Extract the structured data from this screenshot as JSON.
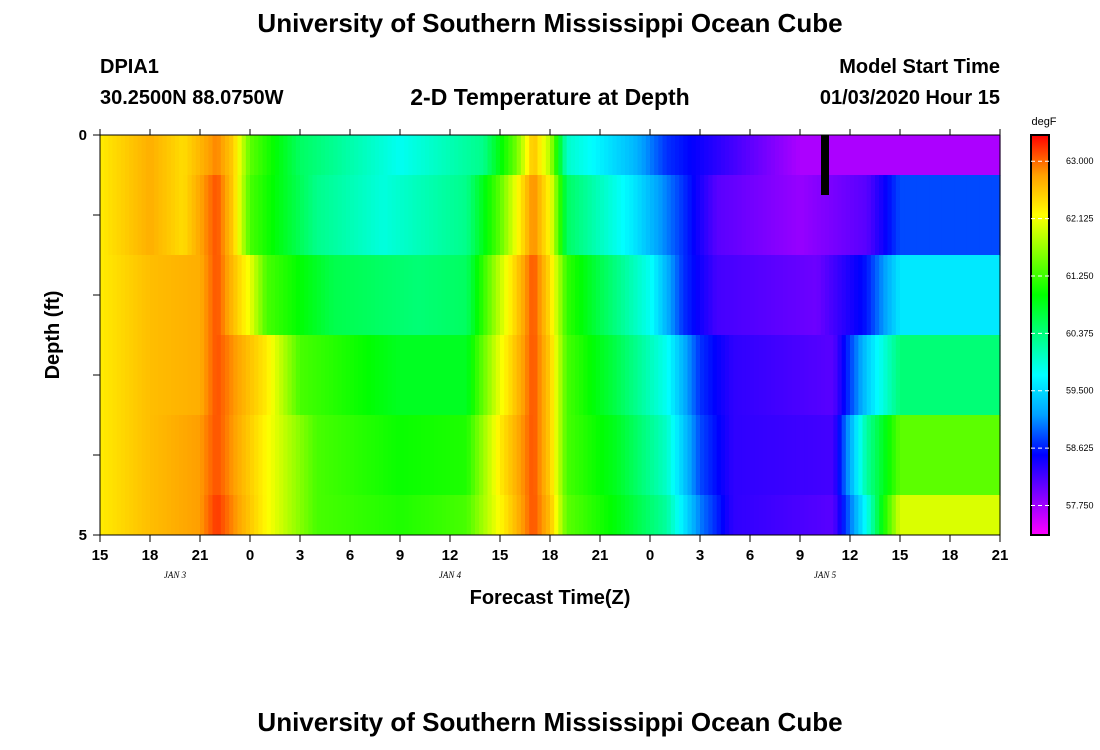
{
  "page": {
    "title_top": "University of Southern Mississippi Ocean Cube",
    "title_bottom": "University of Southern Mississippi Ocean Cube",
    "station_id": "DPIA1",
    "location": "30.2500N 88.0750W",
    "model_start_label": "Model Start Time",
    "model_start_value": "01/03/2020 Hour 15"
  },
  "chart_data": {
    "type": "heatmap",
    "title": "2-D Temperature at Depth",
    "xlabel": "Forecast Time(Z)",
    "ylabel": "Depth (ft)",
    "x_start": "01/03/2020 15Z",
    "x_step_hours": 1,
    "ylim": [
      0,
      5
    ],
    "y_tick_labels": [
      "0",
      "5"
    ],
    "x_tick_labels": [
      "15",
      "18",
      "21",
      "0",
      "3",
      "6",
      "9",
      "12",
      "15",
      "18",
      "21",
      "0",
      "3",
      "6",
      "9",
      "12",
      "15",
      "18",
      "21"
    ],
    "date_labels": [
      {
        "label": "JAN 3",
        "hours_from_start": 4.5
      },
      {
        "label": "JAN 4",
        "hours_from_start": 21
      },
      {
        "label": "JAN 5",
        "hours_from_start": 43.5
      }
    ],
    "depth_rows_ft": [
      0,
      1,
      2,
      3,
      4,
      5
    ],
    "colorbar": {
      "unit": "degF",
      "min": 57.3,
      "max": 63.4,
      "tick_labels": [
        "63.000",
        "62.125",
        "61.250",
        "60.375",
        "59.500",
        "58.625",
        "57.750"
      ],
      "colors": [
        "#ff00ff",
        "#8000ff",
        "#0000ff",
        "#00a0ff",
        "#00ffff",
        "#00ff80",
        "#00ff00",
        "#80ff00",
        "#ffff00",
        "#ffa000",
        "#ff0000"
      ]
    },
    "rows": [
      {
        "depth": 0,
        "anchors": [
          [
            0,
            62.3
          ],
          [
            3,
            62.7
          ],
          [
            5,
            62.4
          ],
          [
            7,
            62.9
          ],
          [
            8,
            62.5
          ],
          [
            9,
            61.4
          ],
          [
            12,
            60.5
          ],
          [
            18,
            59.8
          ],
          [
            23,
            60.3
          ],
          [
            25,
            61.5
          ],
          [
            26,
            62.6
          ],
          [
            27,
            61.8
          ],
          [
            28,
            60.0
          ],
          [
            32,
            59.3
          ],
          [
            34,
            58.7
          ],
          [
            38,
            58.2
          ],
          [
            42,
            57.7
          ],
          [
            48,
            57.7
          ]
        ]
      },
      {
        "depth": 1,
        "anchors": [
          [
            0,
            62.3
          ],
          [
            3,
            62.7
          ],
          [
            5,
            62.4
          ],
          [
            7,
            63.1
          ],
          [
            8,
            62.5
          ],
          [
            9,
            61.3
          ],
          [
            11,
            60.8
          ],
          [
            13,
            60.3
          ],
          [
            17,
            59.9
          ],
          [
            22,
            60.3
          ],
          [
            24,
            61.4
          ],
          [
            26,
            62.9
          ],
          [
            27,
            62.2
          ],
          [
            28,
            60.5
          ],
          [
            32,
            59.6
          ],
          [
            35,
            58.7
          ],
          [
            37,
            58.1
          ],
          [
            42,
            57.8
          ],
          [
            46,
            58.1
          ],
          [
            48,
            58.8
          ]
        ]
      },
      {
        "depth": 2,
        "anchors": [
          [
            0,
            62.3
          ],
          [
            3,
            62.6
          ],
          [
            6,
            62.7
          ],
          [
            7,
            63.1
          ],
          [
            9,
            62.1
          ],
          [
            10,
            61.3
          ],
          [
            14,
            60.6
          ],
          [
            19,
            60.4
          ],
          [
            22,
            60.5
          ],
          [
            24,
            61.9
          ],
          [
            26,
            63.1
          ],
          [
            27,
            62.4
          ],
          [
            28,
            61.2
          ],
          [
            30,
            60.6
          ],
          [
            33,
            59.8
          ],
          [
            35,
            58.7
          ],
          [
            37,
            58.2
          ],
          [
            43,
            58.0
          ],
          [
            46,
            58.6
          ],
          [
            48,
            59.6
          ]
        ]
      },
      {
        "depth": 3,
        "anchors": [
          [
            0,
            62.3
          ],
          [
            3,
            62.6
          ],
          [
            6,
            62.7
          ],
          [
            7,
            63.1
          ],
          [
            10,
            62.3
          ],
          [
            12,
            61.3
          ],
          [
            18,
            60.8
          ],
          [
            22,
            60.8
          ],
          [
            24,
            62.1
          ],
          [
            26,
            63.1
          ],
          [
            27,
            62.5
          ],
          [
            28,
            61.3
          ],
          [
            31,
            60.6
          ],
          [
            34,
            59.8
          ],
          [
            36,
            58.7
          ],
          [
            38,
            58.3
          ],
          [
            44,
            58.1
          ],
          [
            46,
            59.4
          ],
          [
            48,
            60.4
          ]
        ]
      },
      {
        "depth": 4,
        "anchors": [
          [
            0,
            62.3
          ],
          [
            3,
            62.6
          ],
          [
            6,
            62.8
          ],
          [
            7,
            63.1
          ],
          [
            10,
            62.2
          ],
          [
            13,
            61.3
          ],
          [
            18,
            61.0
          ],
          [
            22,
            61.1
          ],
          [
            24,
            62.3
          ],
          [
            26,
            63.1
          ],
          [
            27,
            62.5
          ],
          [
            28,
            61.3
          ],
          [
            31,
            60.8
          ],
          [
            34,
            60.0
          ],
          [
            36,
            58.8
          ],
          [
            38,
            58.3
          ],
          [
            44,
            58.2
          ],
          [
            46,
            60.2
          ],
          [
            48,
            61.4
          ]
        ]
      },
      {
        "depth": 5,
        "anchors": [
          [
            0,
            62.3
          ],
          [
            3,
            62.6
          ],
          [
            6,
            62.8
          ],
          [
            7,
            63.2
          ],
          [
            10,
            62.2
          ],
          [
            13,
            61.3
          ],
          [
            18,
            61.1
          ],
          [
            22,
            61.3
          ],
          [
            24,
            62.2
          ],
          [
            26,
            63.1
          ],
          [
            27,
            62.6
          ],
          [
            28,
            61.4
          ],
          [
            31,
            60.9
          ],
          [
            34,
            60.2
          ],
          [
            36,
            59.0
          ],
          [
            38,
            58.3
          ],
          [
            44,
            58.1
          ],
          [
            46,
            59.8
          ],
          [
            47,
            61.0
          ],
          [
            48,
            62.0
          ]
        ]
      }
    ],
    "marker": {
      "hours_from_start": 43.5,
      "depth_ft": 0.5,
      "color": "#000000"
    }
  }
}
